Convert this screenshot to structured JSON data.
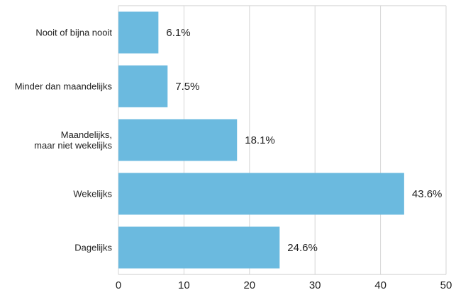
{
  "chart_data": {
    "type": "bar",
    "orientation": "horizontal",
    "categories": [
      "Nooit of bijna nooit",
      "Minder dan maandelijks",
      "Maandelijks,\nmaar niet wekelijks",
      "Wekelijks",
      "Dagelijks"
    ],
    "values": [
      6.1,
      7.5,
      18.1,
      43.6,
      24.6
    ],
    "value_labels": [
      "6.1%",
      "7.5%",
      "18.1%",
      "43.6%",
      "24.6%"
    ],
    "xlim": [
      0,
      50
    ],
    "xticks": [
      0,
      10,
      20,
      30,
      40,
      50
    ],
    "xtick_labels": [
      "0",
      "10",
      "20",
      "30",
      "40",
      "50"
    ],
    "grid": "vertical",
    "title": "",
    "xlabel": "",
    "ylabel": "",
    "colors": {
      "bar": "#6bbadf",
      "grid": "#d6d6d6",
      "axis": "#cccccc",
      "text": "#222222"
    }
  }
}
